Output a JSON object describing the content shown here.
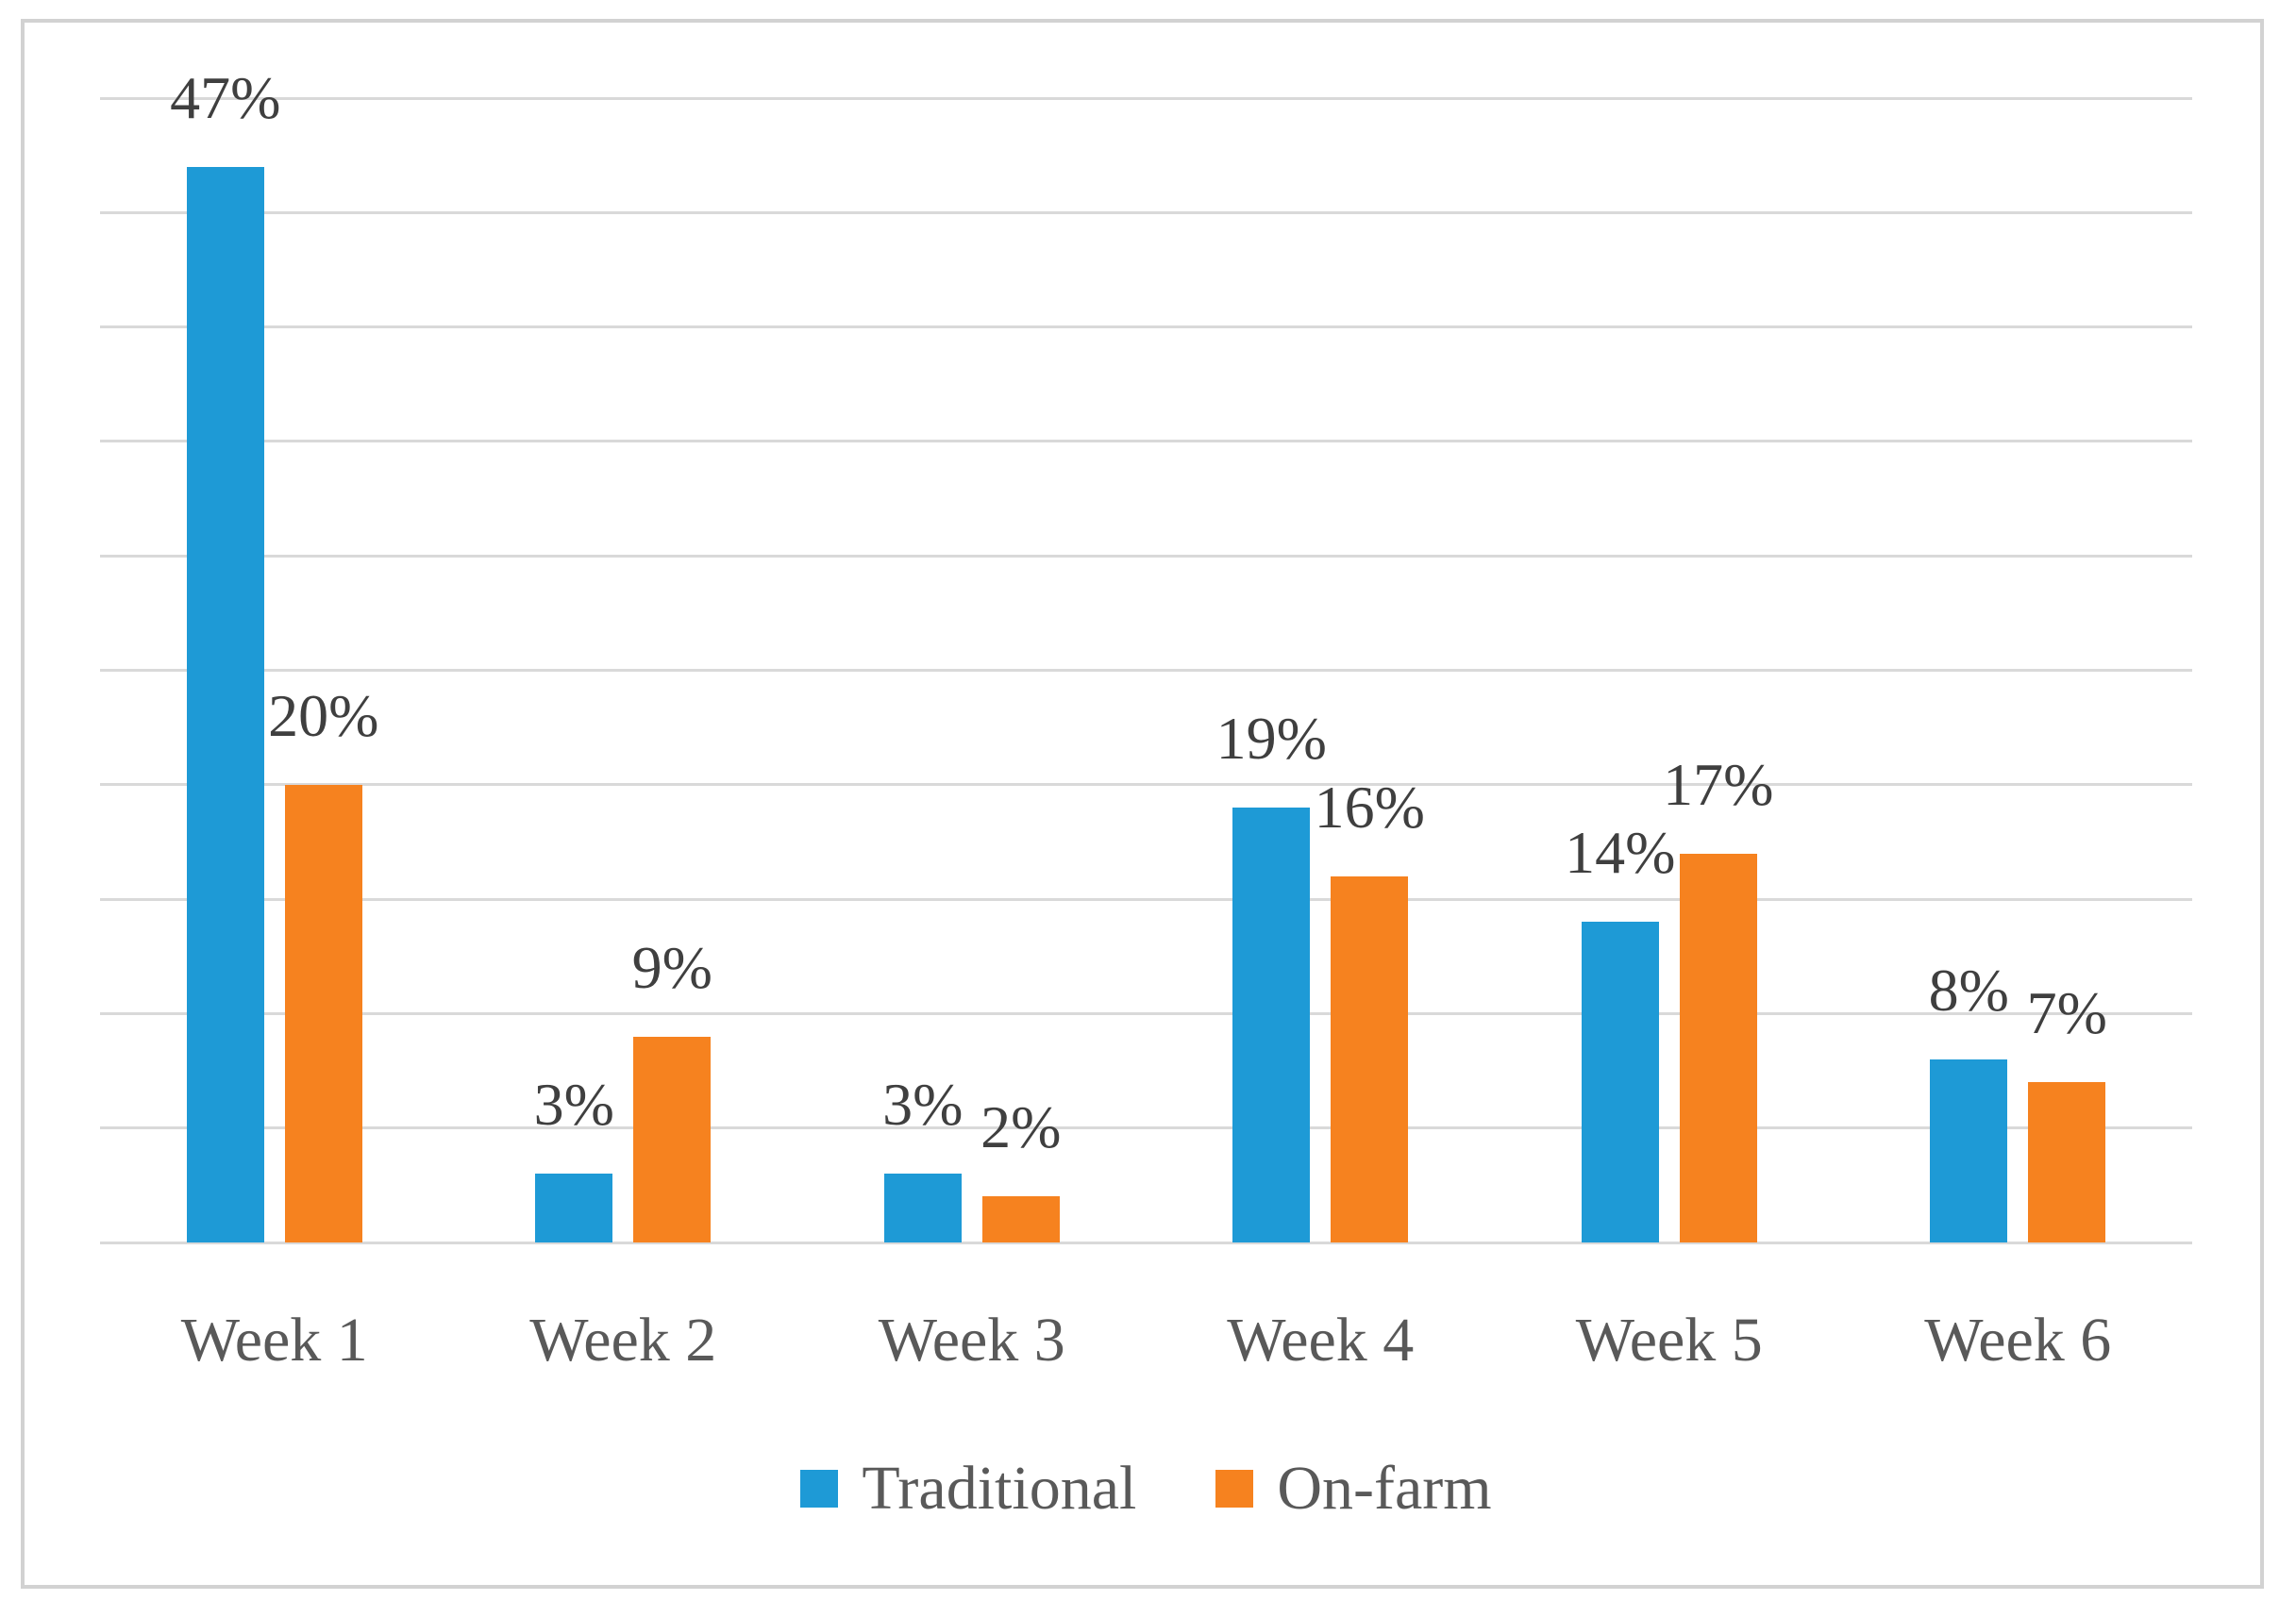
{
  "chart_data": {
    "type": "bar",
    "title": "",
    "xlabel": "",
    "ylabel": "",
    "categories": [
      "Week 1",
      "Week 2",
      "Week 3",
      "Week 4",
      "Week 5",
      "Week 6"
    ],
    "series": [
      {
        "name": "Traditional",
        "color": "#1e9ad6",
        "values": [
          47,
          3,
          3,
          19,
          14,
          8
        ],
        "labels": [
          "47%",
          "3%",
          "3%",
          "19%",
          "14%",
          "8%"
        ]
      },
      {
        "name": "On-farm",
        "color": "#f6821f",
        "values": [
          20,
          9,
          2,
          16,
          17,
          7
        ],
        "labels": [
          "20%",
          "9%",
          "2%",
          "16%",
          "17%",
          "7%"
        ]
      }
    ],
    "ylim": [
      0,
      50
    ],
    "gridline_step": 5,
    "grid": true,
    "y_axis_tick_labels_visible": false,
    "data_label_suffix": "%",
    "legend_position": "bottom"
  },
  "style_colors": {
    "gridline": "#d9d9d9",
    "figure_border": "#d2d2d2",
    "axis_label_text": "#595959",
    "data_label_text": "#3f3f3f",
    "background": "#ffffff"
  }
}
